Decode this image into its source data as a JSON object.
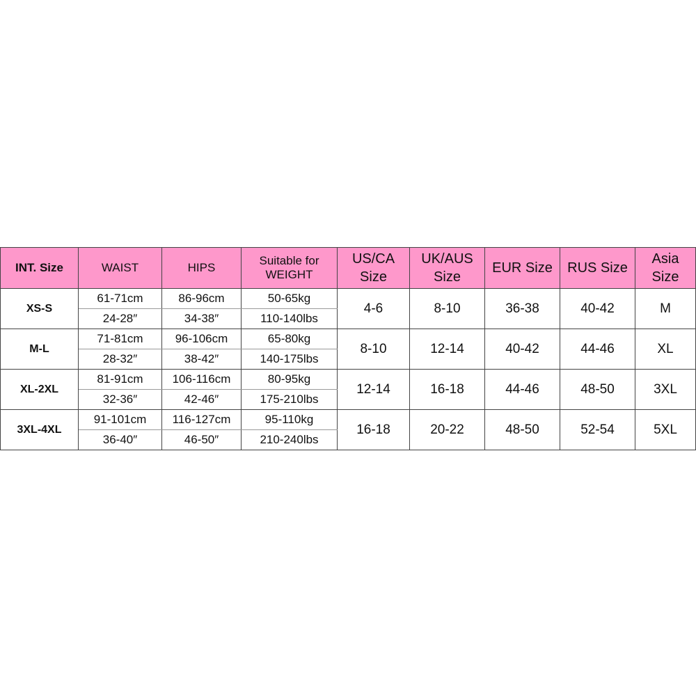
{
  "headers": {
    "int_size": "INT. Size",
    "waist": "WAIST",
    "hips": "HIPS",
    "weight_1": "Suitable for",
    "weight_2": "WEIGHT",
    "us_1": "US/CA",
    "us_2": "Size",
    "uk_1": "UK/AUS",
    "uk_2": "Size",
    "eur": "EUR Size",
    "rus": "RUS Size",
    "asia_1": "Asia",
    "asia_2": "Size"
  },
  "header_color": "#fe98cb",
  "rows": [
    {
      "size": "XS-S",
      "waist_cm": "61-71cm",
      "waist_in": "24-28″",
      "hips_cm": "86-96cm",
      "hips_in": "34-38″",
      "weight_kg": "50-65kg",
      "weight_lbs": "110-140lbs",
      "us": "4-6",
      "uk": "8-10",
      "eur": "36-38",
      "rus": "40-42",
      "asia": "M"
    },
    {
      "size": "M-L",
      "waist_cm": "71-81cm",
      "waist_in": "28-32″",
      "hips_cm": "96-106cm",
      "hips_in": "38-42″",
      "weight_kg": "65-80kg",
      "weight_lbs": "140-175lbs",
      "us": "8-10",
      "uk": "12-14",
      "eur": "40-42",
      "rus": "44-46",
      "asia": "XL"
    },
    {
      "size": "XL-2XL",
      "waist_cm": "81-91cm",
      "waist_in": "32-36″",
      "hips_cm": "106-116cm",
      "hips_in": "42-46″",
      "weight_kg": "80-95kg",
      "weight_lbs": "175-210lbs",
      "us": "12-14",
      "uk": "16-18",
      "eur": "44-46",
      "rus": "48-50",
      "asia": "3XL"
    },
    {
      "size": "3XL-4XL",
      "waist_cm": "91-101cm",
      "waist_in": "36-40″",
      "hips_cm": "116-127cm",
      "hips_in": "46-50″",
      "weight_kg": "95-110kg",
      "weight_lbs": "210-240lbs",
      "us": "16-18",
      "uk": "20-22",
      "eur": "48-50",
      "rus": "52-54",
      "asia": "5XL"
    }
  ]
}
